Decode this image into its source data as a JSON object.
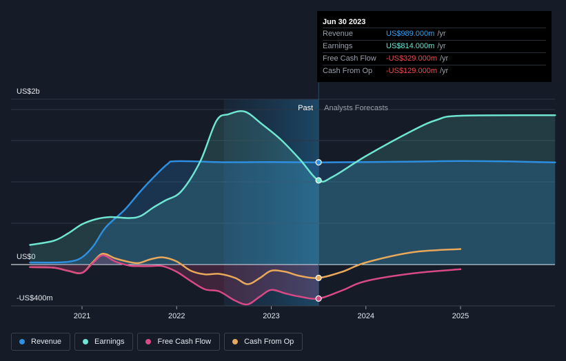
{
  "tooltip": {
    "date": "Jun 30 2023",
    "rows": [
      {
        "label": "Revenue",
        "value": "US$989.000m",
        "unit": "/yr",
        "color": "#3aa0ea"
      },
      {
        "label": "Earnings",
        "value": "US$814.000m",
        "unit": "/yr",
        "color": "#6fe6d2"
      },
      {
        "label": "Free Cash Flow",
        "value": "-US$329.000m",
        "unit": "/yr",
        "color": "#f2494f"
      },
      {
        "label": "Cash From Op",
        "value": "-US$129.000m",
        "unit": "/yr",
        "color": "#f2494f"
      }
    ]
  },
  "legend": [
    {
      "label": "Revenue",
      "color": "#2e8fe0"
    },
    {
      "label": "Earnings",
      "color": "#6fe6d2"
    },
    {
      "label": "Free Cash Flow",
      "color": "#d84a86"
    },
    {
      "label": "Cash From Op",
      "color": "#e9a95a"
    }
  ],
  "period_labels": {
    "past": "Past",
    "forecast": "Analysts Forecasts"
  },
  "chart_data": {
    "type": "line",
    "title": "",
    "xlabel": "",
    "ylabel": "",
    "x_unit": "year",
    "xlim": [
      2020.5,
      2026.0
    ],
    "ylim": [
      -400,
      1600
    ],
    "y_tick_labels": [
      {
        "value": 1600,
        "label": "US$2b"
      },
      {
        "value": 0,
        "label": "US$0"
      },
      {
        "value": -400,
        "label": "-US$400m"
      }
    ],
    "x_ticks": [
      {
        "value": 2021,
        "label": "2021"
      },
      {
        "value": 2022,
        "label": "2022"
      },
      {
        "value": 2023,
        "label": "2023"
      },
      {
        "value": 2024,
        "label": "2024"
      },
      {
        "value": 2025,
        "label": "2025"
      }
    ],
    "highlight_range": [
      2022.5,
      2023.5
    ],
    "divider_x": 2023.5,
    "series": [
      {
        "name": "Earnings",
        "color": "#6fe6d2",
        "fill": "area",
        "points": [
          [
            2020.45,
            190
          ],
          [
            2020.7,
            230
          ],
          [
            2020.85,
            300
          ],
          [
            2021.0,
            390
          ],
          [
            2021.15,
            440
          ],
          [
            2021.3,
            460
          ],
          [
            2021.5,
            450
          ],
          [
            2021.62,
            470
          ],
          [
            2021.75,
            550
          ],
          [
            2021.88,
            620
          ],
          [
            2022.05,
            710
          ],
          [
            2022.25,
            1000
          ],
          [
            2022.42,
            1390
          ],
          [
            2022.55,
            1455
          ],
          [
            2022.72,
            1480
          ],
          [
            2022.9,
            1360
          ],
          [
            2023.1,
            1210
          ],
          [
            2023.3,
            1020
          ],
          [
            2023.5,
            814
          ],
          [
            2023.65,
            850
          ],
          [
            2024.0,
            1050
          ],
          [
            2024.5,
            1300
          ],
          [
            2024.75,
            1400
          ],
          [
            2025.0,
            1440
          ],
          [
            2026.0,
            1445
          ]
        ]
      },
      {
        "name": "Revenue",
        "color": "#2e8fe0",
        "fill": "area",
        "points": [
          [
            2020.45,
            20
          ],
          [
            2020.7,
            20
          ],
          [
            2020.88,
            30
          ],
          [
            2021.0,
            70
          ],
          [
            2021.12,
            180
          ],
          [
            2021.25,
            360
          ],
          [
            2021.45,
            530
          ],
          [
            2021.6,
            690
          ],
          [
            2021.72,
            810
          ],
          [
            2021.9,
            970
          ],
          [
            2022.0,
            1000
          ],
          [
            2022.5,
            990
          ],
          [
            2023.0,
            992
          ],
          [
            2023.5,
            989
          ],
          [
            2024.0,
            992
          ],
          [
            2024.5,
            996
          ],
          [
            2025.0,
            1002
          ],
          [
            2025.5,
            998
          ],
          [
            2026.0,
            988
          ]
        ]
      },
      {
        "name": "Cash From Op",
        "color": "#e9a95a",
        "fill": "none",
        "points": [
          [
            2020.45,
            -25
          ],
          [
            2020.7,
            -30
          ],
          [
            2020.85,
            -60
          ],
          [
            2021.0,
            -80
          ],
          [
            2021.12,
            30
          ],
          [
            2021.22,
            105
          ],
          [
            2021.35,
            60
          ],
          [
            2021.5,
            25
          ],
          [
            2021.6,
            15
          ],
          [
            2021.72,
            50
          ],
          [
            2021.85,
            70
          ],
          [
            2022.0,
            30
          ],
          [
            2022.15,
            -60
          ],
          [
            2022.3,
            -95
          ],
          [
            2022.45,
            -90
          ],
          [
            2022.62,
            -130
          ],
          [
            2022.75,
            -190
          ],
          [
            2022.88,
            -130
          ],
          [
            2023.0,
            -60
          ],
          [
            2023.15,
            -70
          ],
          [
            2023.3,
            -110
          ],
          [
            2023.5,
            -129
          ],
          [
            2023.75,
            -70
          ],
          [
            2024.0,
            20
          ],
          [
            2024.5,
            120
          ],
          [
            2025.0,
            150
          ]
        ]
      },
      {
        "name": "Free Cash Flow",
        "color": "#d84a86",
        "fill": "none",
        "points": [
          [
            2020.45,
            -25
          ],
          [
            2020.7,
            -30
          ],
          [
            2020.85,
            -60
          ],
          [
            2021.0,
            -80
          ],
          [
            2021.12,
            20
          ],
          [
            2021.22,
            90
          ],
          [
            2021.35,
            30
          ],
          [
            2021.5,
            -10
          ],
          [
            2021.6,
            -15
          ],
          [
            2021.72,
            -15
          ],
          [
            2021.85,
            -15
          ],
          [
            2022.0,
            -70
          ],
          [
            2022.15,
            -160
          ],
          [
            2022.3,
            -240
          ],
          [
            2022.45,
            -260
          ],
          [
            2022.62,
            -350
          ],
          [
            2022.75,
            -385
          ],
          [
            2022.88,
            -310
          ],
          [
            2023.0,
            -245
          ],
          [
            2023.15,
            -280
          ],
          [
            2023.3,
            -310
          ],
          [
            2023.5,
            -329
          ],
          [
            2023.75,
            -250
          ],
          [
            2024.0,
            -160
          ],
          [
            2024.5,
            -85
          ],
          [
            2025.0,
            -45
          ]
        ]
      }
    ],
    "markers": [
      {
        "series": "Revenue",
        "x": 2023.5,
        "y": 989
      },
      {
        "series": "Earnings",
        "x": 2023.5,
        "y": 814
      },
      {
        "series": "Cash From Op",
        "x": 2023.5,
        "y": -129
      },
      {
        "series": "Free Cash Flow",
        "x": 2023.5,
        "y": -329
      }
    ]
  }
}
